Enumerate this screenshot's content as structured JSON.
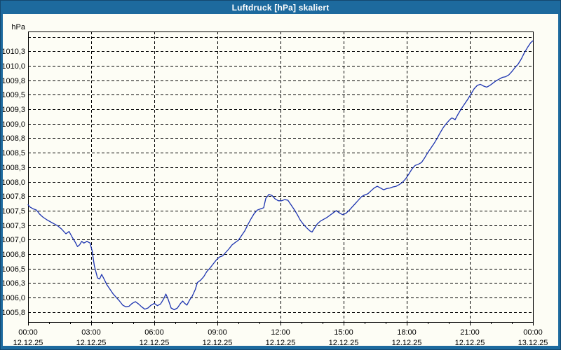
{
  "window": {
    "title": "Luftdruck [hPa] skaliert"
  },
  "colors": {
    "window_frame": "#1D6A9E",
    "title_text": "#FFFFFF",
    "plot_background": "#FDFDF5",
    "grid_line": "#000000",
    "axis_frame": "#000000",
    "series_line": "#1C33B0",
    "label_text": "#000000"
  },
  "chart_data": {
    "type": "line",
    "title": "Luftdruck [hPa] skaliert",
    "unit_label": "hPa",
    "grid": "dashed-both-axes",
    "legend": "none",
    "x_axis": {
      "range_hours": [
        0,
        24
      ],
      "major_tick_hours": [
        0,
        3,
        6,
        9,
        12,
        15,
        18,
        21,
        24
      ],
      "minor_tick_step_hours": 1,
      "time_labels": [
        "00:00",
        "03:00",
        "06:00",
        "09:00",
        "12:00",
        "15:00",
        "18:00",
        "21:00",
        "00:00"
      ],
      "date_labels": [
        "12.12.25",
        "12.12.25",
        "12.12.25",
        "12.12.25",
        "12.12.25",
        "12.12.25",
        "12.12.25",
        "12.12.25",
        "13.12.25"
      ]
    },
    "y_axis": {
      "unit": "hPa",
      "grid_top_value": 1010.5,
      "grid_bottom_value": 1005.75,
      "grid_step": 0.25,
      "labeled_values": [
        1010.25,
        1010.0,
        1009.75,
        1009.5,
        1009.25,
        1009.0,
        1008.75,
        1008.5,
        1008.25,
        1008.0,
        1007.75,
        1007.5,
        1007.25,
        1007.0,
        1006.75,
        1006.5,
        1006.25,
        1006.0,
        1005.75
      ],
      "labels": [
        "1010,3",
        "1010,0",
        "1009,8",
        "1009,5",
        "1009,3",
        "1009,0",
        "1008,8",
        "1008,5",
        "1008,3",
        "1008,0",
        "1007,8",
        "1007,5",
        "1007,3",
        "1007,0",
        "1006,8",
        "1006,5",
        "1006,3",
        "1006,0",
        "1005,8"
      ],
      "value_top_at_frame": 1010.59,
      "value_bottom_at_frame": 1005.58
    },
    "series": [
      {
        "name": "Luftdruck",
        "points": [
          [
            0.0,
            1007.6
          ],
          [
            0.1,
            1007.56
          ],
          [
            0.25,
            1007.53
          ],
          [
            0.4,
            1007.51
          ],
          [
            0.55,
            1007.44
          ],
          [
            0.7,
            1007.39
          ],
          [
            0.9,
            1007.34
          ],
          [
            1.1,
            1007.3
          ],
          [
            1.25,
            1007.27
          ],
          [
            1.4,
            1007.24
          ],
          [
            1.6,
            1007.18
          ],
          [
            1.8,
            1007.1
          ],
          [
            1.95,
            1007.14
          ],
          [
            2.1,
            1007.04
          ],
          [
            2.25,
            1006.95
          ],
          [
            2.35,
            1006.88
          ],
          [
            2.45,
            1006.91
          ],
          [
            2.55,
            1006.97
          ],
          [
            2.65,
            1006.94
          ],
          [
            2.8,
            1006.97
          ],
          [
            2.95,
            1006.94
          ],
          [
            3.05,
            1006.8
          ],
          [
            3.15,
            1006.55
          ],
          [
            3.3,
            1006.34
          ],
          [
            3.4,
            1006.32
          ],
          [
            3.5,
            1006.4
          ],
          [
            3.6,
            1006.33
          ],
          [
            3.75,
            1006.22
          ],
          [
            3.9,
            1006.14
          ],
          [
            4.05,
            1006.06
          ],
          [
            4.2,
            1006.0
          ],
          [
            4.35,
            1005.94
          ],
          [
            4.5,
            1005.87
          ],
          [
            4.65,
            1005.84
          ],
          [
            4.8,
            1005.85
          ],
          [
            4.95,
            1005.9
          ],
          [
            5.1,
            1005.93
          ],
          [
            5.25,
            1005.89
          ],
          [
            5.4,
            1005.84
          ],
          [
            5.55,
            1005.8
          ],
          [
            5.7,
            1005.82
          ],
          [
            5.85,
            1005.87
          ],
          [
            6.0,
            1005.9
          ],
          [
            6.15,
            1005.86
          ],
          [
            6.3,
            1005.89
          ],
          [
            6.45,
            1005.98
          ],
          [
            6.55,
            1006.06
          ],
          [
            6.65,
            1005.98
          ],
          [
            6.8,
            1005.82
          ],
          [
            6.95,
            1005.79
          ],
          [
            7.1,
            1005.82
          ],
          [
            7.25,
            1005.9
          ],
          [
            7.35,
            1005.94
          ],
          [
            7.45,
            1005.9
          ],
          [
            7.55,
            1005.87
          ],
          [
            7.7,
            1005.97
          ],
          [
            7.8,
            1006.02
          ],
          [
            7.95,
            1006.14
          ],
          [
            8.05,
            1006.26
          ],
          [
            8.2,
            1006.3
          ],
          [
            8.35,
            1006.36
          ],
          [
            8.5,
            1006.45
          ],
          [
            8.65,
            1006.51
          ],
          [
            8.8,
            1006.58
          ],
          [
            8.95,
            1006.65
          ],
          [
            9.1,
            1006.7
          ],
          [
            9.25,
            1006.72
          ],
          [
            9.4,
            1006.78
          ],
          [
            9.55,
            1006.84
          ],
          [
            9.7,
            1006.91
          ],
          [
            9.85,
            1006.95
          ],
          [
            10.0,
            1006.99
          ],
          [
            10.15,
            1007.07
          ],
          [
            10.3,
            1007.15
          ],
          [
            10.45,
            1007.26
          ],
          [
            10.6,
            1007.36
          ],
          [
            10.75,
            1007.45
          ],
          [
            10.9,
            1007.51
          ],
          [
            11.05,
            1007.53
          ],
          [
            11.2,
            1007.55
          ],
          [
            11.3,
            1007.71
          ],
          [
            11.45,
            1007.78
          ],
          [
            11.6,
            1007.76
          ],
          [
            11.75,
            1007.7
          ],
          [
            11.9,
            1007.67
          ],
          [
            12.05,
            1007.67
          ],
          [
            12.2,
            1007.69
          ],
          [
            12.35,
            1007.68
          ],
          [
            12.5,
            1007.6
          ],
          [
            12.65,
            1007.52
          ],
          [
            12.8,
            1007.43
          ],
          [
            12.95,
            1007.33
          ],
          [
            13.1,
            1007.26
          ],
          [
            13.25,
            1007.2
          ],
          [
            13.4,
            1007.15
          ],
          [
            13.5,
            1007.13
          ],
          [
            13.6,
            1007.19
          ],
          [
            13.75,
            1007.27
          ],
          [
            13.9,
            1007.32
          ],
          [
            14.05,
            1007.35
          ],
          [
            14.2,
            1007.38
          ],
          [
            14.35,
            1007.42
          ],
          [
            14.5,
            1007.46
          ],
          [
            14.65,
            1007.5
          ],
          [
            14.8,
            1007.46
          ],
          [
            14.95,
            1007.43
          ],
          [
            15.1,
            1007.45
          ],
          [
            15.25,
            1007.5
          ],
          [
            15.4,
            1007.56
          ],
          [
            15.55,
            1007.62
          ],
          [
            15.7,
            1007.68
          ],
          [
            15.85,
            1007.74
          ],
          [
            16.0,
            1007.77
          ],
          [
            16.15,
            1007.79
          ],
          [
            16.3,
            1007.84
          ],
          [
            16.45,
            1007.89
          ],
          [
            16.6,
            1007.92
          ],
          [
            16.75,
            1007.89
          ],
          [
            16.9,
            1007.86
          ],
          [
            17.05,
            1007.88
          ],
          [
            17.2,
            1007.89
          ],
          [
            17.35,
            1007.91
          ],
          [
            17.5,
            1007.92
          ],
          [
            17.65,
            1007.95
          ],
          [
            17.8,
            1007.99
          ],
          [
            17.95,
            1008.05
          ],
          [
            18.1,
            1008.13
          ],
          [
            18.25,
            1008.22
          ],
          [
            18.4,
            1008.28
          ],
          [
            18.55,
            1008.3
          ],
          [
            18.7,
            1008.33
          ],
          [
            18.85,
            1008.41
          ],
          [
            19.0,
            1008.5
          ],
          [
            19.15,
            1008.58
          ],
          [
            19.3,
            1008.66
          ],
          [
            19.45,
            1008.75
          ],
          [
            19.6,
            1008.85
          ],
          [
            19.75,
            1008.94
          ],
          [
            19.9,
            1009.01
          ],
          [
            20.05,
            1009.07
          ],
          [
            20.15,
            1009.1
          ],
          [
            20.3,
            1009.07
          ],
          [
            20.45,
            1009.17
          ],
          [
            20.6,
            1009.26
          ],
          [
            20.75,
            1009.34
          ],
          [
            20.9,
            1009.42
          ],
          [
            21.05,
            1009.51
          ],
          [
            21.2,
            1009.6
          ],
          [
            21.35,
            1009.66
          ],
          [
            21.5,
            1009.68
          ],
          [
            21.65,
            1009.65
          ],
          [
            21.8,
            1009.63
          ],
          [
            21.95,
            1009.66
          ],
          [
            22.1,
            1009.7
          ],
          [
            22.25,
            1009.74
          ],
          [
            22.4,
            1009.77
          ],
          [
            22.55,
            1009.8
          ],
          [
            22.7,
            1009.81
          ],
          [
            22.85,
            1009.84
          ],
          [
            23.0,
            1009.9
          ],
          [
            23.15,
            1009.97
          ],
          [
            23.3,
            1010.03
          ],
          [
            23.45,
            1010.12
          ],
          [
            23.6,
            1010.23
          ],
          [
            23.75,
            1010.32
          ],
          [
            23.9,
            1010.4
          ],
          [
            24.0,
            1010.43
          ]
        ]
      }
    ]
  }
}
